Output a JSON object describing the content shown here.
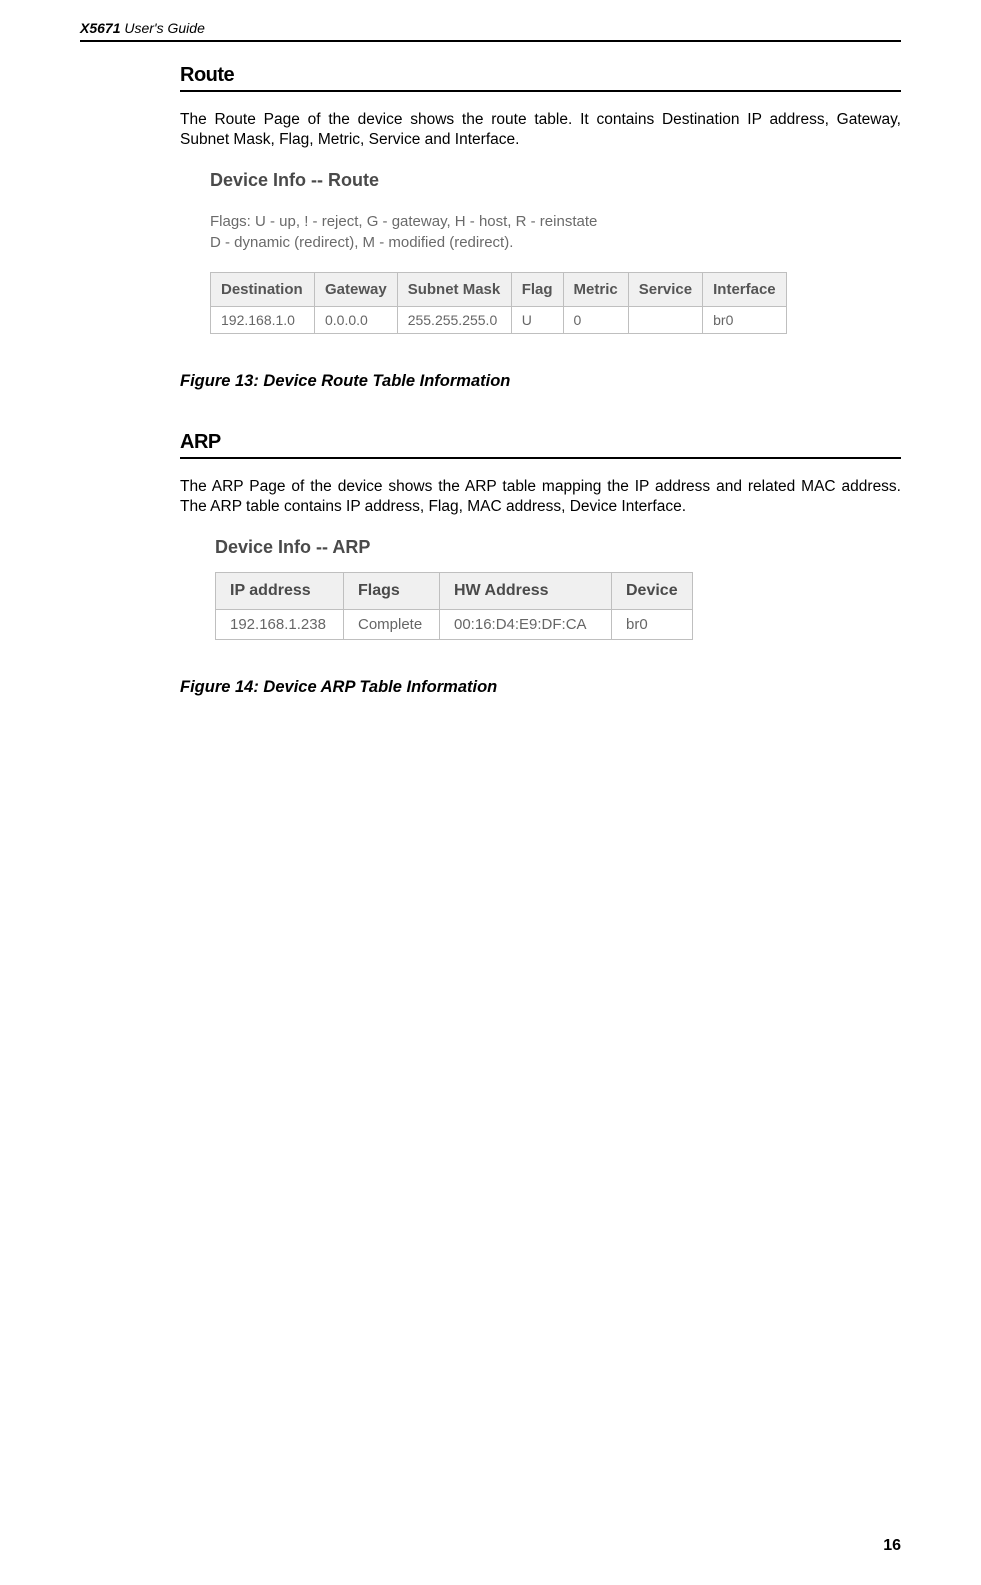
{
  "header": {
    "model": "X5671",
    "suffix": " User's Guide"
  },
  "route": {
    "title": "Route",
    "body": "The Route Page of the device shows the route table. It contains Destination IP address, Gateway, Subnet Mask, Flag, Metric, Service and Interface.",
    "info_title": "Device Info -- Route",
    "flags_line1": "Flags: U - up, ! - reject, G - gateway, H - host, R - reinstate",
    "flags_line2": "D - dynamic (redirect), M - modified (redirect).",
    "table": {
      "headers": [
        "Destination",
        "Gateway",
        "Subnet Mask",
        "Flag",
        "Metric",
        "Service",
        "Interface"
      ],
      "row": [
        "192.168.1.0",
        "0.0.0.0",
        "255.255.255.0",
        "U",
        "0",
        "",
        "br0"
      ],
      "col_widths": [
        "104",
        "80",
        "114",
        "45",
        "60",
        "70",
        "84"
      ]
    },
    "caption": "Figure 13: Device Route Table Information"
  },
  "arp": {
    "title": "ARP",
    "body": "The ARP Page of the device shows the ARP table mapping the IP address and related MAC address. The ARP table contains IP address, Flag, MAC address, Device Interface.",
    "info_title": "Device Info -- ARP",
    "table": {
      "headers": [
        "IP address",
        "Flags",
        "HW Address",
        "Device"
      ],
      "row": [
        "192.168.1.238",
        "Complete",
        "00:16:D4:E9:DF:CA",
        "br0"
      ],
      "col_widths": [
        "128",
        "96",
        "172",
        "74"
      ]
    },
    "caption": "Figure 14: Device ARP Table Information"
  },
  "page_number": "16"
}
